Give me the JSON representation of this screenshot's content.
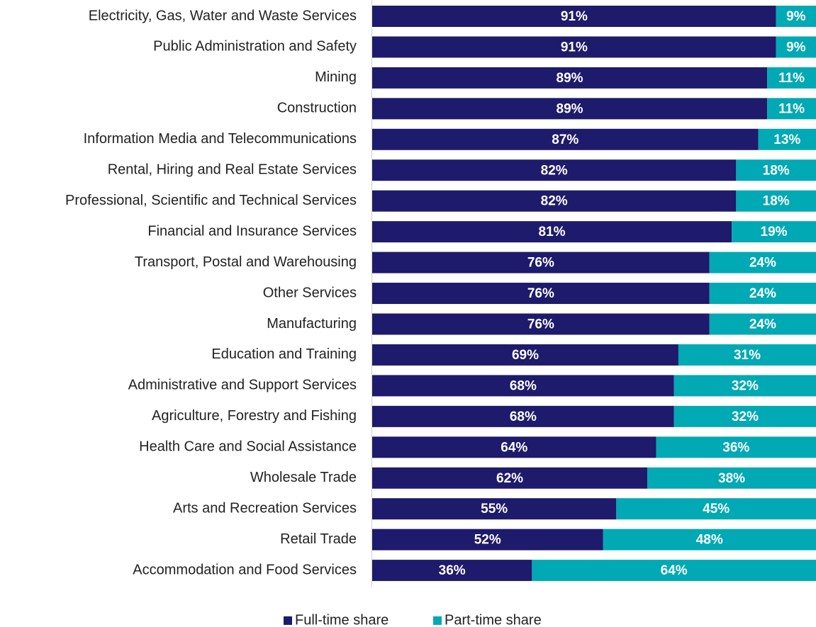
{
  "chart_data": {
    "type": "bar",
    "orientation": "horizontal",
    "stacked": true,
    "categories": [
      "Electricity, Gas, Water and Waste Services",
      "Public Administration and Safety",
      "Mining",
      "Construction",
      "Information Media and Telecommunications",
      "Rental, Hiring and Real Estate Services",
      "Professional, Scientific and Technical Services",
      "Financial and Insurance Services",
      "Transport, Postal and Warehousing",
      "Other Services",
      "Manufacturing",
      "Education and Training",
      "Administrative and Support Services",
      "Agriculture, Forestry and Fishing",
      "Health Care and Social Assistance",
      "Wholesale Trade",
      "Arts and Recreation Services",
      "Retail Trade",
      "Accommodation and Food Services"
    ],
    "series": [
      {
        "name": "Full-time share",
        "color": "#1e1a6c",
        "values": [
          91,
          91,
          89,
          89,
          87,
          82,
          82,
          81,
          76,
          76,
          76,
          69,
          68,
          68,
          64,
          62,
          55,
          52,
          36
        ],
        "value_labels": [
          "91%",
          "91%",
          "89%",
          "89%",
          "87%",
          "82%",
          "82%",
          "81%",
          "76%",
          "76%",
          "76%",
          "69%",
          "68%",
          "68%",
          "64%",
          "62%",
          "55%",
          "52%",
          "36%"
        ]
      },
      {
        "name": "Part-time share",
        "color": "#00a9b4",
        "values": [
          9,
          9,
          11,
          11,
          13,
          18,
          18,
          19,
          24,
          24,
          24,
          31,
          32,
          32,
          36,
          38,
          45,
          48,
          64
        ],
        "value_labels": [
          "9%",
          "9%",
          "11%",
          "11%",
          "13%",
          "18%",
          "18%",
          "19%",
          "24%",
          "24%",
          "24%",
          "31%",
          "32%",
          "32%",
          "36%",
          "38%",
          "45%",
          "48%",
          "64%"
        ]
      }
    ],
    "xlim": [
      0,
      100
    ],
    "legend": "bottom"
  }
}
